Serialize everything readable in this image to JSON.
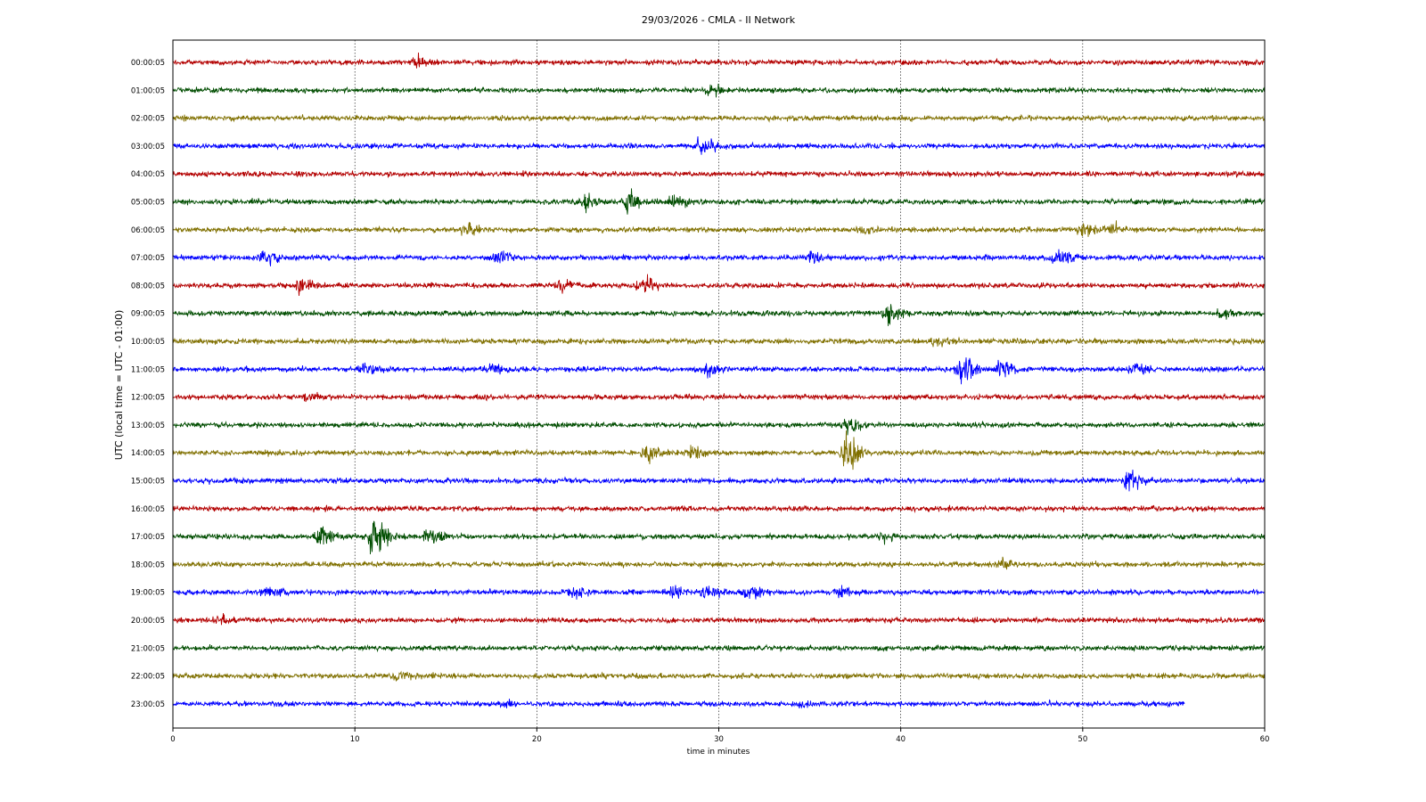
{
  "chart_data": {
    "type": "line",
    "title": "29/03/2026 - CMLA - II Network",
    "xlabel": "time in minutes",
    "ylabel": "UTC (local time = UTC - 01:00)",
    "xlim": [
      0,
      60
    ],
    "x_ticks": [
      "0",
      "10",
      "20",
      "30",
      "40",
      "50",
      "60"
    ],
    "grid": "vertical dotted",
    "series_colors": [
      "#b30000",
      "#004d00",
      "#807000",
      "#0000ff"
    ],
    "rows": [
      {
        "label": "00:00:05",
        "color": "#b30000",
        "end_minute": 60,
        "events": [
          {
            "t": 13.5,
            "a": 1.8
          }
        ]
      },
      {
        "label": "01:00:05",
        "color": "#004d00",
        "end_minute": 60,
        "events": [
          {
            "t": 29.5,
            "a": 1.5
          }
        ]
      },
      {
        "label": "02:00:05",
        "color": "#807000",
        "end_minute": 60,
        "events": []
      },
      {
        "label": "03:00:05",
        "color": "#0000ff",
        "end_minute": 60,
        "events": [
          {
            "t": 29.0,
            "a": 3.0
          }
        ]
      },
      {
        "label": "04:00:05",
        "color": "#b30000",
        "end_minute": 60,
        "events": []
      },
      {
        "label": "05:00:05",
        "color": "#004d00",
        "end_minute": 60,
        "events": [
          {
            "t": 22.5,
            "a": 3.0
          },
          {
            "t": 25.0,
            "a": 4.0
          },
          {
            "t": 27.5,
            "a": 2.2
          }
        ]
      },
      {
        "label": "06:00:05",
        "color": "#807000",
        "end_minute": 60,
        "events": [
          {
            "t": 16.0,
            "a": 1.8
          },
          {
            "t": 38.0,
            "a": 1.6
          },
          {
            "t": 50.0,
            "a": 2.4
          },
          {
            "t": 51.5,
            "a": 2.0
          }
        ]
      },
      {
        "label": "07:00:05",
        "color": "#0000ff",
        "end_minute": 60,
        "events": [
          {
            "t": 5.0,
            "a": 2.5
          },
          {
            "t": 17.8,
            "a": 2.5
          },
          {
            "t": 35.0,
            "a": 2.0
          },
          {
            "t": 48.5,
            "a": 3.0
          }
        ]
      },
      {
        "label": "08:00:05",
        "color": "#b30000",
        "end_minute": 60,
        "events": [
          {
            "t": 7.0,
            "a": 2.2
          },
          {
            "t": 21.3,
            "a": 2.0
          },
          {
            "t": 25.7,
            "a": 3.0
          }
        ]
      },
      {
        "label": "09:00:05",
        "color": "#004d00",
        "end_minute": 60,
        "events": [
          {
            "t": 39.3,
            "a": 3.5
          },
          {
            "t": 57.5,
            "a": 1.8
          }
        ]
      },
      {
        "label": "10:00:05",
        "color": "#807000",
        "end_minute": 60,
        "events": [
          {
            "t": 41.8,
            "a": 1.8
          }
        ]
      },
      {
        "label": "11:00:05",
        "color": "#0000ff",
        "end_minute": 60,
        "events": [
          {
            "t": 10.5,
            "a": 2.2
          },
          {
            "t": 17.5,
            "a": 2.0
          },
          {
            "t": 29.3,
            "a": 2.0
          },
          {
            "t": 43.3,
            "a": 5.5
          },
          {
            "t": 45.5,
            "a": 3.5
          },
          {
            "t": 52.8,
            "a": 2.5
          }
        ]
      },
      {
        "label": "12:00:05",
        "color": "#b30000",
        "end_minute": 60,
        "events": [
          {
            "t": 7.5,
            "a": 1.8
          }
        ]
      },
      {
        "label": "13:00:05",
        "color": "#004d00",
        "end_minute": 60,
        "events": [
          {
            "t": 37.0,
            "a": 3.0
          }
        ]
      },
      {
        "label": "14:00:05",
        "color": "#807000",
        "end_minute": 60,
        "events": [
          {
            "t": 26.0,
            "a": 4.0
          },
          {
            "t": 28.5,
            "a": 2.5
          },
          {
            "t": 37.0,
            "a": 7.0
          }
        ]
      },
      {
        "label": "15:00:05",
        "color": "#0000ff",
        "end_minute": 60,
        "events": [
          {
            "t": 52.5,
            "a": 3.0
          }
        ]
      },
      {
        "label": "16:00:05",
        "color": "#b30000",
        "end_minute": 60,
        "events": []
      },
      {
        "label": "17:00:05",
        "color": "#004d00",
        "end_minute": 60,
        "events": [
          {
            "t": 8.0,
            "a": 4.0
          },
          {
            "t": 11.0,
            "a": 9.0
          },
          {
            "t": 14.1,
            "a": 3.5
          },
          {
            "t": 39.0,
            "a": 1.8
          }
        ]
      },
      {
        "label": "18:00:05",
        "color": "#807000",
        "end_minute": 60,
        "events": [
          {
            "t": 45.5,
            "a": 1.6
          }
        ]
      },
      {
        "label": "19:00:05",
        "color": "#0000ff",
        "end_minute": 60,
        "events": [
          {
            "t": 5.2,
            "a": 2.0
          },
          {
            "t": 21.8,
            "a": 2.0
          },
          {
            "t": 27.5,
            "a": 1.8
          },
          {
            "t": 29.3,
            "a": 2.5
          },
          {
            "t": 31.5,
            "a": 3.0
          },
          {
            "t": 36.5,
            "a": 2.2
          }
        ]
      },
      {
        "label": "20:00:05",
        "color": "#b30000",
        "end_minute": 60,
        "events": [
          {
            "t": 2.5,
            "a": 1.5
          }
        ]
      },
      {
        "label": "21:00:05",
        "color": "#004d00",
        "end_minute": 60,
        "events": []
      },
      {
        "label": "22:00:05",
        "color": "#807000",
        "end_minute": 60,
        "events": [
          {
            "t": 12.3,
            "a": 1.5
          }
        ]
      },
      {
        "label": "23:00:05",
        "color": "#0000ff",
        "end_minute": 55.6,
        "events": [
          {
            "t": 18.2,
            "a": 1.5
          },
          {
            "t": 34.5,
            "a": 1.4
          }
        ]
      }
    ]
  }
}
